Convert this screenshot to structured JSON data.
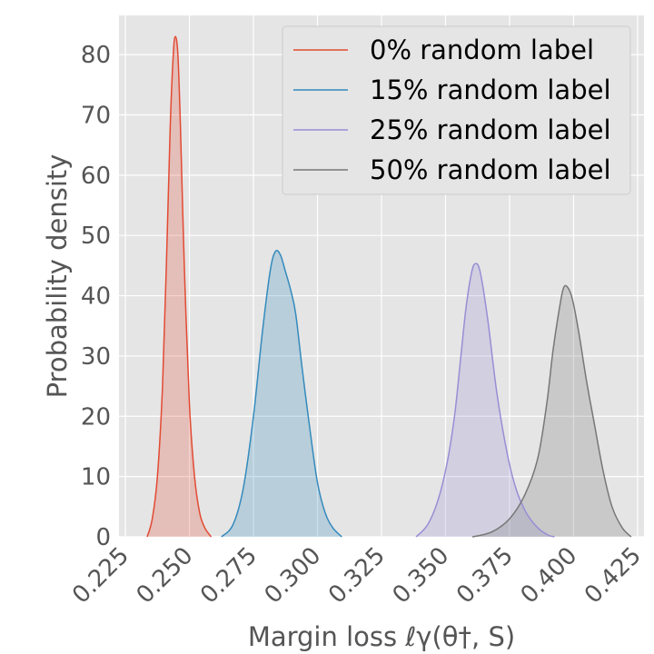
{
  "chart_data": {
    "type": "area",
    "title": "",
    "xlabel": "Margin loss ℓγ(θ†, S)",
    "ylabel": "Probability density",
    "xlim": [
      0.2225,
      0.4275
    ],
    "ylim": [
      0,
      86.5
    ],
    "x_ticks": [
      "0.225",
      "0.250",
      "0.275",
      "0.300",
      "0.325",
      "0.350",
      "0.375",
      "0.400",
      "0.425"
    ],
    "y_ticks": [
      "0",
      "10",
      "20",
      "30",
      "40",
      "50",
      "60",
      "70",
      "80"
    ],
    "grid": true,
    "legend_position": "top-right",
    "series": [
      {
        "name": "0% random label",
        "color": "#E24A33",
        "x": [
          0.2335,
          0.2355,
          0.2375,
          0.2395,
          0.241,
          0.2425,
          0.2437,
          0.2445,
          0.2455,
          0.2465,
          0.248,
          0.25,
          0.252,
          0.254,
          0.256,
          0.2585
        ],
        "y": [
          0,
          3,
          10,
          25,
          45,
          68,
          80,
          83,
          80,
          68,
          45,
          22,
          10,
          4,
          1.5,
          0
        ]
      },
      {
        "name": "15% random label",
        "color": "#348ABD",
        "x": [
          0.2625,
          0.267,
          0.271,
          0.275,
          0.2785,
          0.2815,
          0.2835,
          0.2855,
          0.2875,
          0.2895,
          0.2915,
          0.294,
          0.297,
          0.3,
          0.303,
          0.306,
          0.3095
        ],
        "y": [
          0,
          2,
          8,
          20,
          34,
          44,
          47.3,
          46.8,
          44,
          41,
          37,
          28,
          18,
          9,
          4,
          1.5,
          0
        ]
      },
      {
        "name": "25% random label",
        "color": "#988ED5",
        "x": [
          0.3385,
          0.343,
          0.347,
          0.3505,
          0.3535,
          0.356,
          0.358,
          0.36,
          0.3615,
          0.3635,
          0.3665,
          0.37,
          0.374,
          0.3775,
          0.3815,
          0.386,
          0.39,
          0.3925
        ],
        "y": [
          0,
          2,
          6,
          12,
          20,
          30,
          38,
          43.5,
          45.3,
          44,
          36,
          24,
          14,
          8,
          4,
          1.5,
          0.3,
          0
        ]
      },
      {
        "name": "50% random label",
        "color": "#777777",
        "x": [
          0.3605,
          0.368,
          0.375,
          0.381,
          0.386,
          0.3895,
          0.392,
          0.3945,
          0.396,
          0.3975,
          0.3995,
          0.402,
          0.405,
          0.408,
          0.4115,
          0.415,
          0.419,
          0.4225
        ],
        "y": [
          0,
          0.8,
          3,
          7,
          13,
          22,
          31,
          38,
          41.2,
          41.5,
          39.5,
          34,
          26,
          19,
          11,
          5,
          1.5,
          0
        ]
      }
    ]
  }
}
